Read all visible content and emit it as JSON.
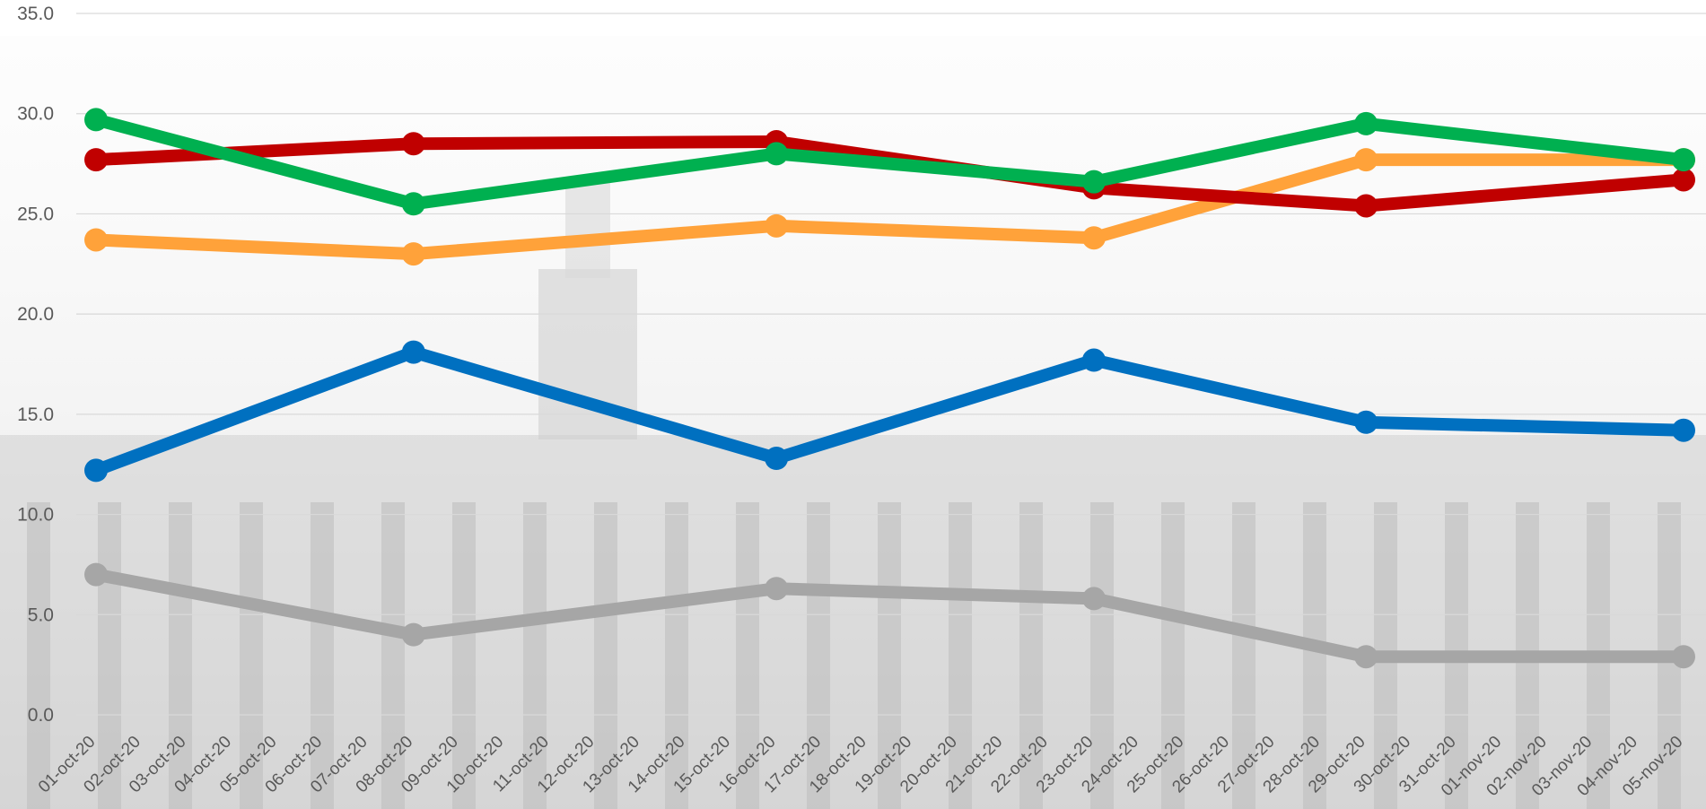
{
  "chart_data": {
    "type": "line",
    "x": [
      "01-oct-20",
      "02-oct-20",
      "03-oct-20",
      "04-oct-20",
      "05-oct-20",
      "06-oct-20",
      "07-oct-20",
      "08-oct-20",
      "09-oct-20",
      "10-oct-20",
      "11-oct-20",
      "12-oct-20",
      "13-oct-20",
      "14-oct-20",
      "15-oct-20",
      "16-oct-20",
      "17-oct-20",
      "18-oct-20",
      "19-oct-20",
      "20-oct-20",
      "21-oct-20",
      "22-oct-20",
      "23-oct-20",
      "24-oct-20",
      "25-oct-20",
      "26-oct-20",
      "27-oct-20",
      "28-oct-20",
      "29-oct-20",
      "30-oct-20",
      "31-oct-20",
      "01-nov-20",
      "02-nov-20",
      "03-nov-20",
      "04-nov-20",
      "05-nov-20"
    ],
    "ylim": [
      0,
      35
    ],
    "yticks": [
      "0.0",
      "5.0",
      "10.0",
      "15.0",
      "20.0",
      "25.0",
      "30.0",
      "35.0"
    ],
    "grid": true,
    "series": [
      {
        "color": "#00B050",
        "x": [
          "01-oct-20",
          "08-oct-20",
          "16-oct-20",
          "23-oct-20",
          "29-oct-20",
          "05-nov-20"
        ],
        "values": [
          29.7,
          25.5,
          28.0,
          26.6,
          29.5,
          27.7
        ]
      },
      {
        "color": "#C00000",
        "x": [
          "01-oct-20",
          "08-oct-20",
          "16-oct-20",
          "23-oct-20",
          "29-oct-20",
          "05-nov-20"
        ],
        "values": [
          27.7,
          28.5,
          28.6,
          26.3,
          25.4,
          26.7
        ]
      },
      {
        "color": "#FFA23A",
        "x": [
          "01-oct-20",
          "08-oct-20",
          "16-oct-20",
          "23-oct-20",
          "29-oct-20",
          "05-nov-20"
        ],
        "values": [
          23.7,
          23.0,
          24.4,
          23.8,
          27.7,
          27.7
        ]
      },
      {
        "color": "#0070C0",
        "x": [
          "01-oct-20",
          "08-oct-20",
          "16-oct-20",
          "23-oct-20",
          "29-oct-20",
          "05-nov-20"
        ],
        "values": [
          12.2,
          18.1,
          12.8,
          17.7,
          14.6,
          14.2
        ]
      },
      {
        "color": "#A6A6A6",
        "x": [
          "01-oct-20",
          "08-oct-20",
          "16-oct-20",
          "23-oct-20",
          "29-oct-20",
          "05-nov-20"
        ],
        "values": [
          7.0,
          4.0,
          6.3,
          5.8,
          2.9,
          2.9
        ]
      }
    ]
  }
}
